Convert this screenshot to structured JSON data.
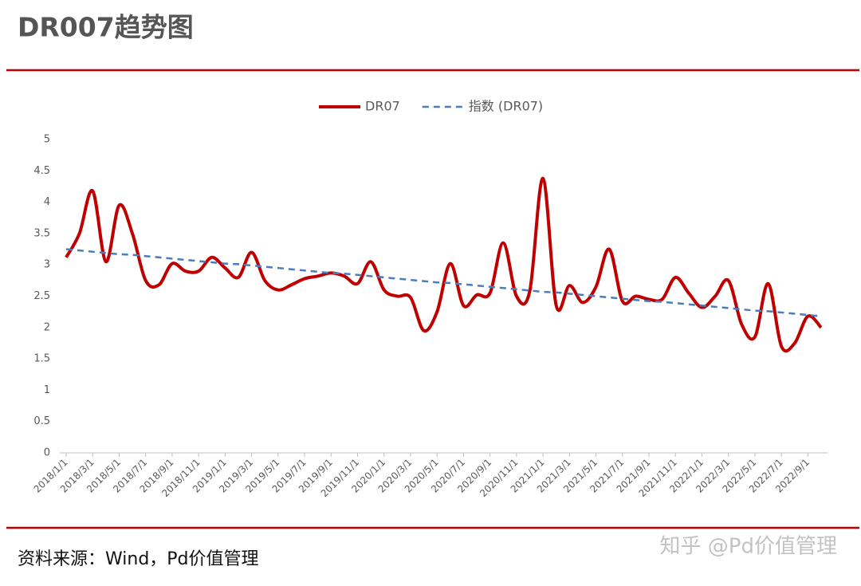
{
  "chart_data": {
    "type": "line",
    "title": "DR007趋势图",
    "source": "资料来源：Wind，Pd价值管理",
    "watermark": "知乎 @Pd价值管理",
    "categories": [
      "2018/1/1",
      null,
      "2018/3/1",
      null,
      "2018/5/1",
      null,
      "2018/7/1",
      null,
      "2018/9/1",
      null,
      "2018/11/1",
      null,
      "2019/1/1",
      null,
      "2019/3/1",
      null,
      "2019/5/1",
      null,
      "2019/7/1",
      null,
      "2019/9/1",
      null,
      "2019/11/1",
      null,
      "2020/1/1",
      null,
      "2020/3/1",
      null,
      "2020/5/1",
      null,
      "2020/7/1",
      null,
      "2020/9/1",
      null,
      "2020/11/1",
      null,
      "2021/1/1",
      null,
      "2021/3/1",
      null,
      "2021/5/1",
      null,
      "2021/7/1",
      null,
      "2021/9/1",
      null,
      "2021/11/1",
      null,
      "2022/1/1",
      null,
      "2022/3/1",
      null,
      "2022/5/1",
      null,
      "2022/7/1",
      null,
      "2022/9/1",
      null
    ],
    "series": [
      {
        "name": "DR07",
        "color": "#c00000",
        "dashed": false,
        "smooth": true,
        "values": [
          3.12,
          3.5,
          4.18,
          3.05,
          3.95,
          3.5,
          2.75,
          2.68,
          3.02,
          2.9,
          2.9,
          3.12,
          2.95,
          2.8,
          3.2,
          2.75,
          2.6,
          2.68,
          2.78,
          2.82,
          2.87,
          2.82,
          2.7,
          3.05,
          2.6,
          2.5,
          2.48,
          1.95,
          2.25,
          3.02,
          2.35,
          2.52,
          2.55,
          3.35,
          2.5,
          2.58,
          4.38,
          2.35,
          2.67,
          2.4,
          2.65,
          3.25,
          2.42,
          2.5,
          2.45,
          2.45,
          2.8,
          2.55,
          2.32,
          2.5,
          2.75,
          2.05,
          1.85,
          2.7,
          1.7,
          1.75,
          2.18,
          2.0
        ]
      },
      {
        "name": "指数 (DR07)",
        "color": "#4a7ebb",
        "dashed": true,
        "smooth": false,
        "values": [
          3.25,
          3.23,
          3.21,
          3.19,
          3.17,
          3.16,
          3.14,
          3.12,
          3.1,
          3.08,
          3.06,
          3.04,
          3.02,
          3.01,
          2.99,
          2.97,
          2.95,
          2.93,
          2.91,
          2.89,
          2.87,
          2.86,
          2.84,
          2.82,
          2.8,
          2.78,
          2.76,
          2.74,
          2.72,
          2.71,
          2.69,
          2.67,
          2.65,
          2.63,
          2.61,
          2.59,
          2.57,
          2.56,
          2.54,
          2.52,
          2.5,
          2.48,
          2.46,
          2.44,
          2.42,
          2.41,
          2.39,
          2.37,
          2.35,
          2.33,
          2.31,
          2.29,
          2.27,
          2.26,
          2.24,
          2.22,
          2.2,
          2.18
        ]
      }
    ],
    "ylim": [
      0,
      5
    ],
    "yticks": [
      0,
      0.5,
      1,
      1.5,
      2,
      2.5,
      3,
      3.5,
      4,
      4.5,
      5
    ],
    "grid": false,
    "legend": "top"
  }
}
